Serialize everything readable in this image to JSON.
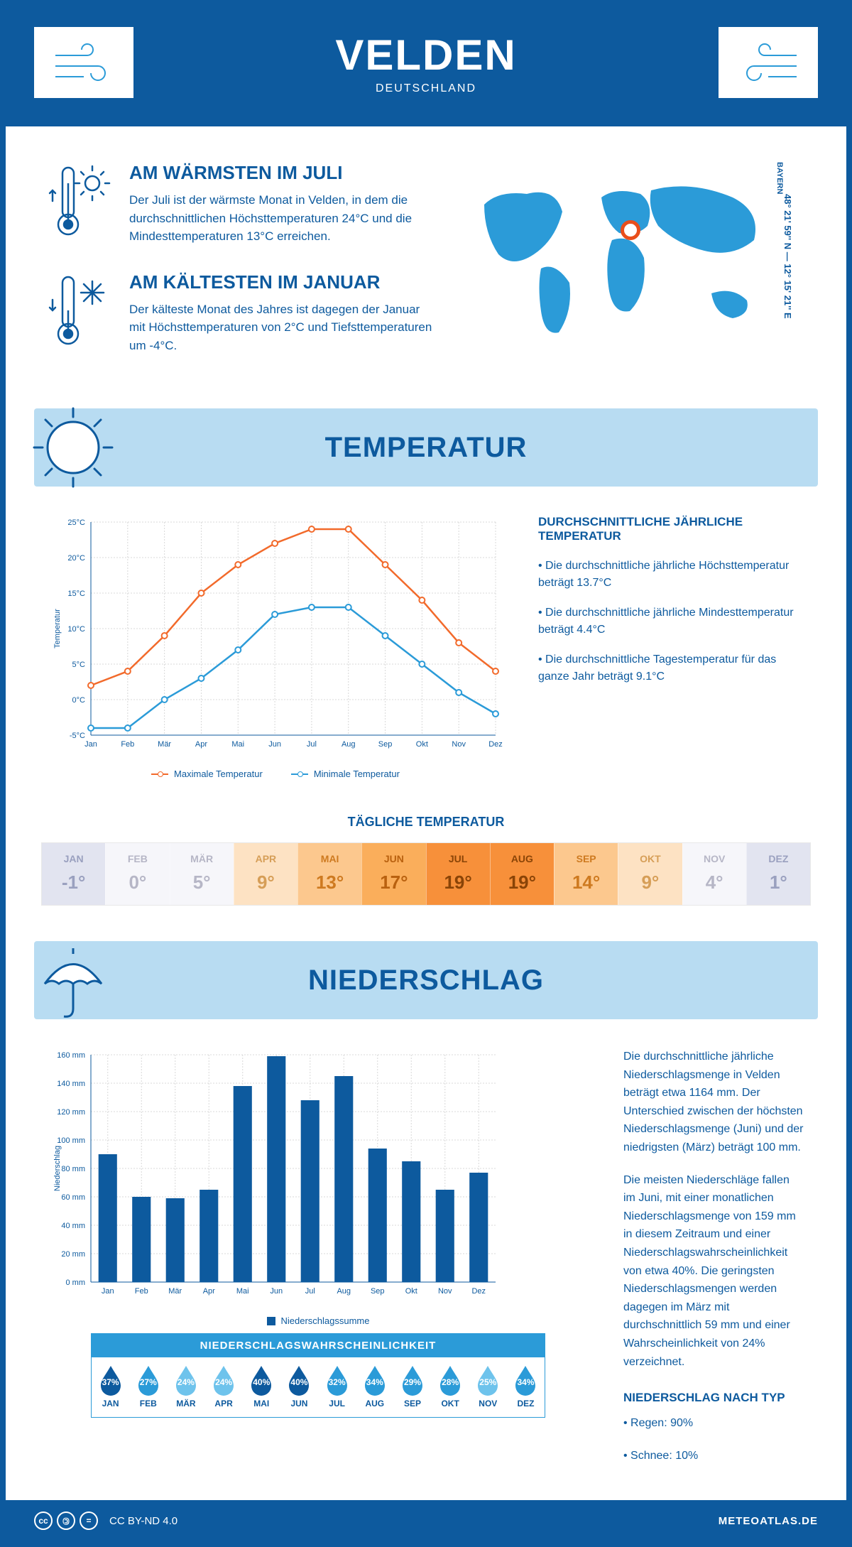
{
  "header": {
    "city": "VELDEN",
    "country": "DEUTSCHLAND"
  },
  "intro": {
    "warm": {
      "title": "AM WÄRMSTEN IM JULI",
      "text": "Der Juli ist der wärmste Monat in Velden, in dem die durchschnittlichen Höchsttemperaturen 24°C und die Mindesttemperaturen 13°C erreichen."
    },
    "cold": {
      "title": "AM KÄLTESTEN IM JANUAR",
      "text": "Der kälteste Monat des Jahres ist dagegen der Januar mit Höchsttemperaturen von 2°C und Tiefsttemperaturen um -4°C."
    },
    "coords": "48° 21' 59'' N — 12° 15' 21'' E",
    "region": "BAYERN"
  },
  "temperature": {
    "section_title": "TEMPERATUR",
    "chart": {
      "months": [
        "Jan",
        "Feb",
        "Mär",
        "Apr",
        "Mai",
        "Jun",
        "Jul",
        "Aug",
        "Sep",
        "Okt",
        "Nov",
        "Dez"
      ],
      "max": [
        2,
        4,
        9,
        15,
        19,
        22,
        24,
        24,
        19,
        14,
        8,
        4
      ],
      "min": [
        -4,
        -4,
        0,
        3,
        7,
        12,
        13,
        13,
        9,
        5,
        1,
        -2
      ],
      "ylim": [
        -5,
        25
      ],
      "ytick_step": 5,
      "max_color": "#f26a2b",
      "min_color": "#2b9bd8",
      "grid_color": "#d8d8d8",
      "bg": "#ffffff",
      "ylabel": "Temperatur",
      "legend_max": "Maximale Temperatur",
      "legend_min": "Minimale Temperatur"
    },
    "info": {
      "heading": "DURCHSCHNITTLICHE JÄHRLICHE TEMPERATUR",
      "b1": "• Die durchschnittliche jährliche Höchsttemperatur beträgt 13.7°C",
      "b2": "• Die durchschnittliche jährliche Mindesttemperatur beträgt 4.4°C",
      "b3": "• Die durchschnittliche Tagestemperatur für das ganze Jahr beträgt 9.1°C"
    },
    "daily": {
      "title": "TÄGLICHE TEMPERATUR",
      "months": [
        "JAN",
        "FEB",
        "MÄR",
        "APR",
        "MAI",
        "JUN",
        "JUL",
        "AUG",
        "SEP",
        "OKT",
        "NOV",
        "DEZ"
      ],
      "values": [
        "-1°",
        "0°",
        "5°",
        "9°",
        "13°",
        "17°",
        "19°",
        "19°",
        "14°",
        "9°",
        "4°",
        "1°"
      ],
      "bg_colors": [
        "#e2e4f0",
        "#f6f6fa",
        "#f6f6fa",
        "#fde2c3",
        "#fcc88e",
        "#faae5b",
        "#f7903a",
        "#f7903a",
        "#fcc88e",
        "#fde2c3",
        "#f6f6fa",
        "#e2e4f0"
      ],
      "text_colors": [
        "#9aa0bf",
        "#b6b6c6",
        "#b6b6c6",
        "#d69e57",
        "#ce7a20",
        "#b9610f",
        "#8a4407",
        "#8a4407",
        "#ce7a20",
        "#d69e57",
        "#b6b6c6",
        "#9aa0bf"
      ]
    }
  },
  "precip": {
    "section_title": "NIEDERSCHLAG",
    "chart": {
      "months": [
        "Jan",
        "Feb",
        "Mär",
        "Apr",
        "Mai",
        "Jun",
        "Jul",
        "Aug",
        "Sep",
        "Okt",
        "Nov",
        "Dez"
      ],
      "values": [
        90,
        60,
        59,
        65,
        138,
        159,
        128,
        145,
        94,
        85,
        65,
        77
      ],
      "ylim": [
        0,
        160
      ],
      "ytick_step": 20,
      "bar_color": "#0d5a9e",
      "grid_color": "#d8d8d8",
      "ylabel": "Niederschlag",
      "legend": "Niederschlagssumme"
    },
    "info": {
      "p1": "Die durchschnittliche jährliche Niederschlagsmenge in Velden beträgt etwa 1164 mm. Der Unterschied zwischen der höchsten Niederschlagsmenge (Juni) und der niedrigsten (März) beträgt 100 mm.",
      "p2": "Die meisten Niederschläge fallen im Juni, mit einer monatlichen Niederschlagsmenge von 159 mm in diesem Zeitraum und einer Niederschlagswahrscheinlichkeit von etwa 40%. Die geringsten Niederschlagsmengen werden dagegen im März mit durchschnittlich 59 mm und einer Wahrscheinlichkeit von 24% verzeichnet.",
      "type_heading": "NIEDERSCHLAG NACH TYP",
      "type1": "• Regen: 90%",
      "type2": "• Schnee: 10%"
    },
    "prob": {
      "title": "NIEDERSCHLAGSWAHRSCHEINLICHKEIT",
      "months": [
        "JAN",
        "FEB",
        "MÄR",
        "APR",
        "MAI",
        "JUN",
        "JUL",
        "AUG",
        "SEP",
        "OKT",
        "NOV",
        "DEZ"
      ],
      "pct": [
        "37%",
        "27%",
        "24%",
        "24%",
        "40%",
        "40%",
        "32%",
        "34%",
        "29%",
        "28%",
        "25%",
        "34%"
      ],
      "colors": [
        "#0d5a9e",
        "#2b9bd8",
        "#6ec3ec",
        "#6ec3ec",
        "#0d5a9e",
        "#0d5a9e",
        "#2b9bd8",
        "#2b9bd8",
        "#2b9bd8",
        "#2b9bd8",
        "#6ec3ec",
        "#2b9bd8"
      ]
    }
  },
  "footer": {
    "license": "CC BY-ND 4.0",
    "site": "METEOATLAS.DE"
  }
}
